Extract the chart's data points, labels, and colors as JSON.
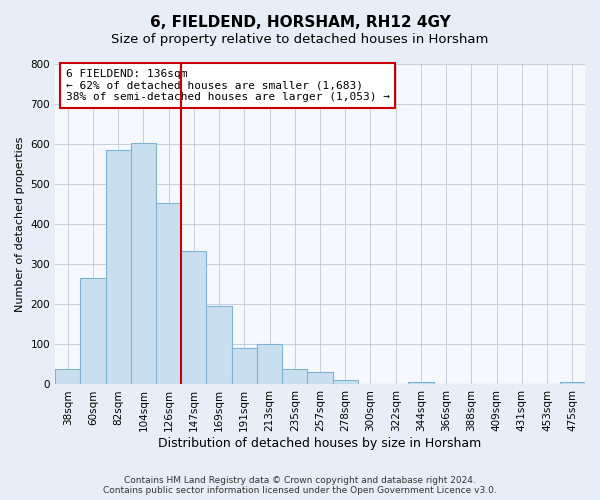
{
  "title": "6, FIELDEND, HORSHAM, RH12 4GY",
  "subtitle": "Size of property relative to detached houses in Horsham",
  "xlabel": "Distribution of detached houses by size in Horsham",
  "ylabel": "Number of detached properties",
  "bar_labels": [
    "38sqm",
    "60sqm",
    "82sqm",
    "104sqm",
    "126sqm",
    "147sqm",
    "169sqm",
    "191sqm",
    "213sqm",
    "235sqm",
    "257sqm",
    "278sqm",
    "300sqm",
    "322sqm",
    "344sqm",
    "366sqm",
    "388sqm",
    "409sqm",
    "431sqm",
    "453sqm",
    "475sqm"
  ],
  "bar_heights": [
    38,
    265,
    585,
    603,
    453,
    333,
    196,
    91,
    100,
    38,
    32,
    12,
    0,
    0,
    5,
    0,
    0,
    0,
    0,
    0,
    5
  ],
  "bar_color": "#c9dff0",
  "bar_edge_color": "#7fb3d3",
  "vline_x_idx": 4,
  "vline_color": "#cc0000",
  "annotation_line1": "6 FIELDEND: 136sqm",
  "annotation_line2": "← 62% of detached houses are smaller (1,683)",
  "annotation_line3": "38% of semi-detached houses are larger (1,053) →",
  "annotation_box_color": "#ffffff",
  "annotation_border_color": "#cc0000",
  "ylim": [
    0,
    800
  ],
  "yticks": [
    0,
    100,
    200,
    300,
    400,
    500,
    600,
    700,
    800
  ],
  "footnote": "Contains HM Land Registry data © Crown copyright and database right 2024.\nContains public sector information licensed under the Open Government Licence v3.0.",
  "background_color": "#e8eef7",
  "plot_bg_color": "#f5f8fd",
  "title_fontsize": 11,
  "subtitle_fontsize": 9.5,
  "xlabel_fontsize": 9,
  "ylabel_fontsize": 8,
  "tick_fontsize": 7.5,
  "annotation_fontsize": 8,
  "footnote_fontsize": 6.5
}
